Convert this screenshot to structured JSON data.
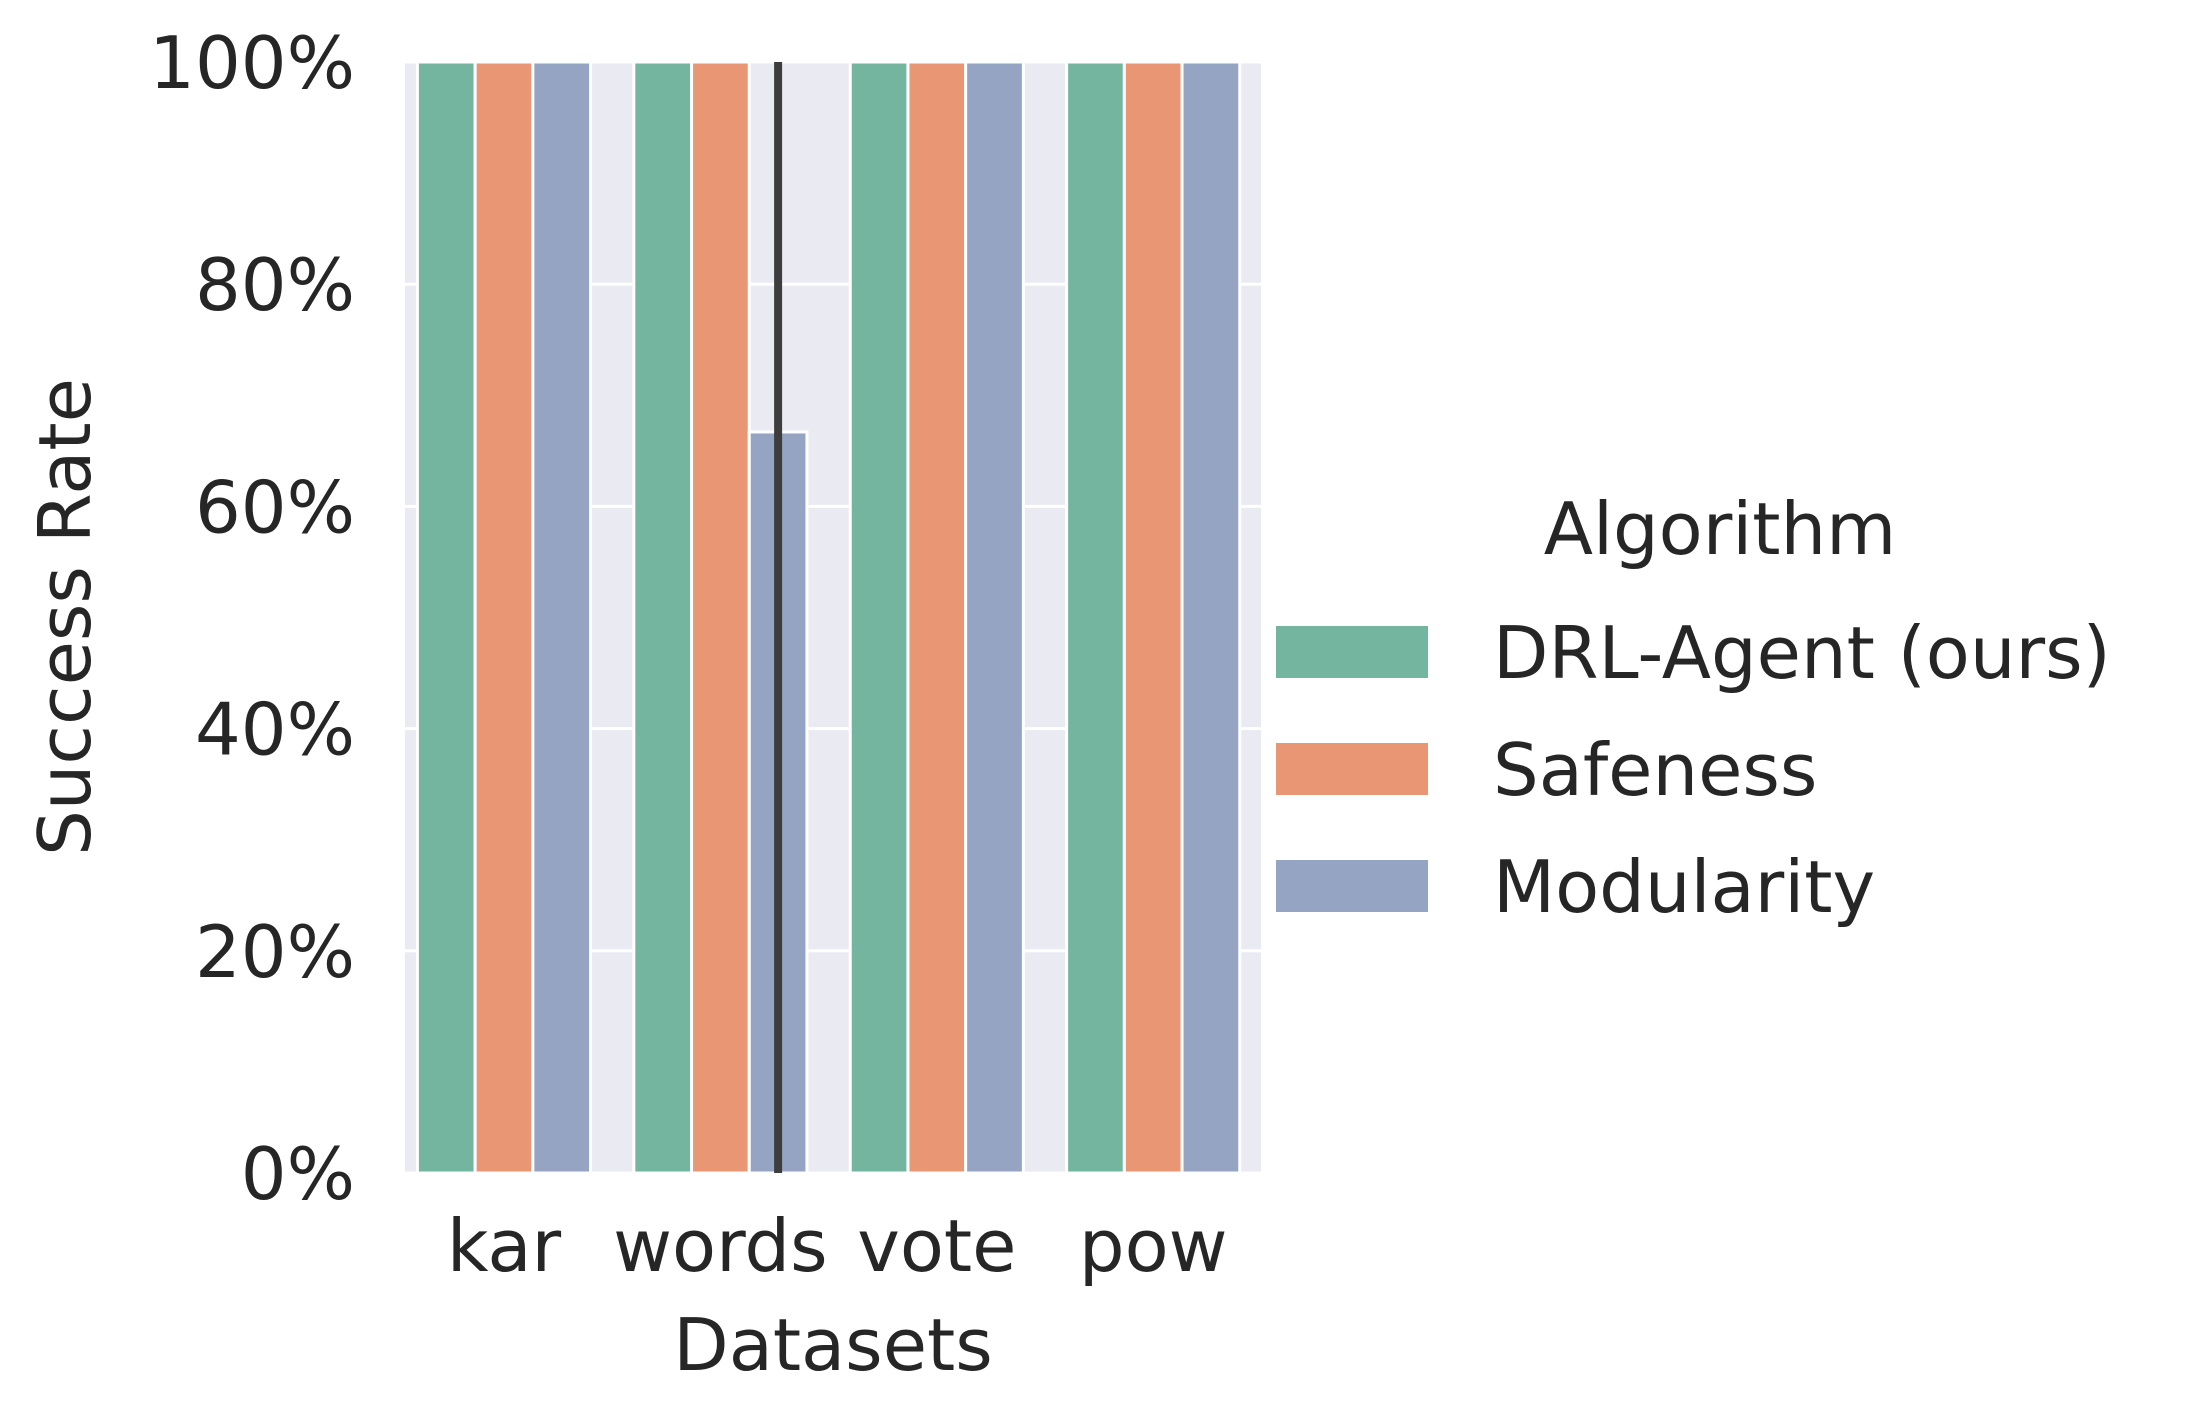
{
  "chart_data": {
    "type": "bar",
    "title": "",
    "xlabel": "Datasets",
    "ylabel": "Success Rate",
    "categories": [
      "kar",
      "words",
      "vote",
      "pow"
    ],
    "ylim": [
      0,
      100
    ],
    "yticks": [
      0,
      20,
      40,
      60,
      80,
      100
    ],
    "ytick_labels": [
      "0%",
      "20%",
      "40%",
      "60%",
      "80%",
      "100%"
    ],
    "grid": true,
    "legend": {
      "title": "Algorithm",
      "placement": "right"
    },
    "series": [
      {
        "name": "DRL-Agent (ours)",
        "color": "#73b59f",
        "values": [
          100,
          100,
          100,
          100
        ]
      },
      {
        "name": "Safeness",
        "color": "#e99675",
        "values": [
          100,
          100,
          100,
          100
        ]
      },
      {
        "name": "Modularity",
        "color": "#95a4c3",
        "values": [
          100,
          66.7,
          100,
          100
        ]
      }
    ],
    "error_bars": [
      {
        "series": "Modularity",
        "category": "words",
        "low": 0,
        "high": 100
      }
    ]
  }
}
